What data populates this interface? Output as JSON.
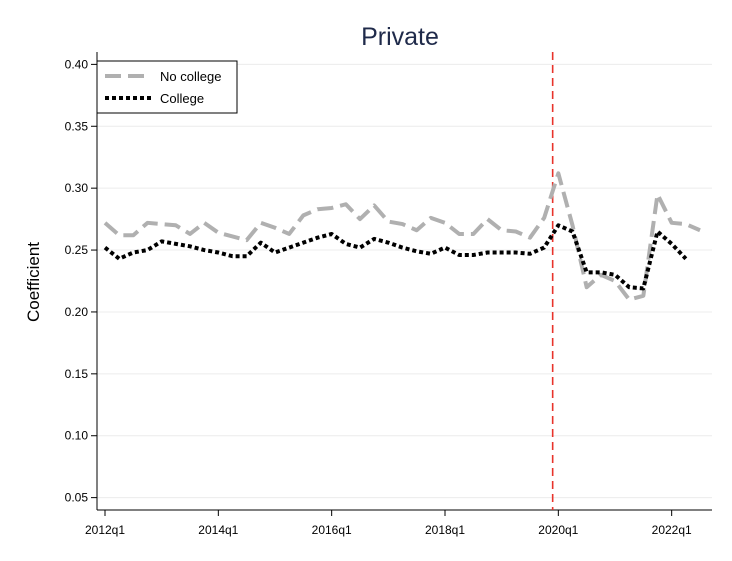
{
  "chart_data": {
    "type": "line",
    "title": "Private",
    "xlabel": "",
    "ylabel": "Coefficient",
    "ylim": [
      0.04,
      0.41
    ],
    "yticks": [
      0.05,
      0.1,
      0.15,
      0.2,
      0.25,
      0.3,
      0.35,
      0.4
    ],
    "ytick_labels": [
      "0.05",
      "0.10",
      "0.15",
      "0.20",
      "0.25",
      "0.30",
      "0.35",
      "0.40"
    ],
    "xticks": [
      0,
      8,
      16,
      24,
      32,
      40
    ],
    "xtick_labels": [
      "2012q1",
      "2014q1",
      "2016q1",
      "2018q1",
      "2020q1",
      "2022q1"
    ],
    "x_periods": [
      "2012q1",
      "2012q2",
      "2012q3",
      "2012q4",
      "2013q1",
      "2013q2",
      "2013q3",
      "2013q4",
      "2014q1",
      "2014q2",
      "2014q3",
      "2014q4",
      "2015q1",
      "2015q2",
      "2015q3",
      "2015q4",
      "2016q1",
      "2016q2",
      "2016q3",
      "2016q4",
      "2017q1",
      "2017q2",
      "2017q3",
      "2017q4",
      "2018q1",
      "2018q2",
      "2018q3",
      "2018q4",
      "2019q1",
      "2019q2",
      "2019q3",
      "2019q4",
      "2020q1",
      "2020q2",
      "2020q3",
      "2020q4",
      "2021q1",
      "2021q2",
      "2021q3",
      "2021q4",
      "2022q1",
      "2022q2",
      "2022q3"
    ],
    "vline": {
      "period": "2019q4",
      "color": "#e8332b",
      "style": "dashed"
    },
    "grid": true,
    "legend_position": "top-left",
    "series": [
      {
        "name": "No college",
        "color": "#b0b0b0",
        "style": "dashed",
        "values": [
          0.272,
          0.262,
          0.262,
          0.272,
          0.271,
          0.27,
          0.263,
          0.272,
          0.264,
          0.261,
          0.258,
          0.272,
          0.268,
          0.263,
          0.278,
          0.283,
          0.284,
          0.287,
          0.275,
          0.286,
          0.273,
          0.271,
          0.266,
          0.276,
          0.272,
          0.263,
          0.263,
          0.275,
          0.266,
          0.265,
          0.26,
          0.276,
          0.312,
          0.27,
          0.22,
          0.23,
          0.225,
          0.21,
          0.213,
          0.295,
          0.272,
          0.271,
          0.266
        ]
      },
      {
        "name": "College",
        "color": "#000000",
        "style": "dotted",
        "values": [
          0.252,
          0.243,
          0.248,
          0.25,
          0.257,
          0.255,
          0.253,
          0.25,
          0.248,
          0.245,
          0.245,
          0.256,
          0.248,
          0.252,
          0.256,
          0.26,
          0.263,
          0.255,
          0.252,
          0.259,
          0.256,
          0.252,
          0.249,
          0.247,
          0.252,
          0.246,
          0.246,
          0.248,
          0.248,
          0.248,
          0.247,
          0.252,
          0.27,
          0.265,
          0.232,
          0.232,
          0.23,
          0.22,
          0.219,
          0.265,
          0.255,
          0.243,
          null
        ]
      }
    ]
  }
}
